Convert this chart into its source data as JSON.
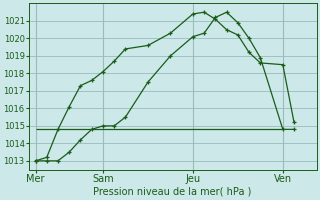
{
  "background_color": "#cce8e8",
  "grid_color": "#99bbbb",
  "line_color": "#1a5c1a",
  "title": "Pression niveau de la mer( hPa )",
  "ylim": [
    1012.5,
    1022.0
  ],
  "yticks": [
    1013,
    1014,
    1015,
    1016,
    1017,
    1018,
    1019,
    1020,
    1021
  ],
  "day_labels": [
    "Mer",
    "Sam",
    "Jeu",
    "Ven"
  ],
  "day_positions": [
    0,
    3,
    7,
    11
  ],
  "xlim": [
    -0.3,
    12.5
  ],
  "series1_x": [
    0,
    0.5,
    1,
    1.5,
    2,
    2.5,
    3,
    3.5,
    4,
    5,
    6,
    7,
    7.5,
    8,
    8.5,
    9,
    9.5,
    10,
    11,
    11.5
  ],
  "series1_y": [
    1013.0,
    1013.2,
    1014.8,
    1016.1,
    1017.3,
    1017.6,
    1018.1,
    1018.7,
    1019.4,
    1019.6,
    1020.3,
    1021.4,
    1021.5,
    1021.1,
    1020.5,
    1020.2,
    1019.2,
    1018.6,
    1018.5,
    1015.2
  ],
  "series2_x": [
    0,
    0.5,
    1,
    1.5,
    2,
    2.5,
    3,
    3.5,
    4,
    5,
    6,
    7,
    7.5,
    8,
    8.5,
    9,
    9.5,
    10,
    11,
    11.5
  ],
  "series2_y": [
    1013.0,
    1013.0,
    1013.0,
    1013.5,
    1014.2,
    1014.8,
    1015.0,
    1015.0,
    1015.5,
    1017.5,
    1019.0,
    1020.1,
    1020.3,
    1021.2,
    1021.5,
    1020.9,
    1020.0,
    1018.9,
    1014.8,
    1014.8
  ],
  "hline_y": 1014.8,
  "hline_x_start": 0,
  "hline_x_end": 11
}
